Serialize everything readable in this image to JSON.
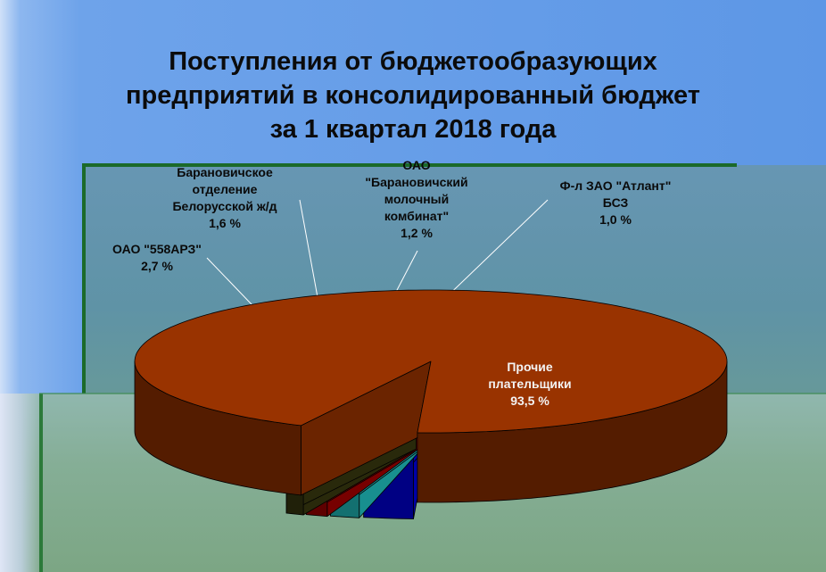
{
  "chart_data": {
    "type": "pie",
    "title_lines": [
      "Поступления от бюджетообразующих",
      "предприятий в консолидированный бюджет",
      "за 1 квартал 2018 года"
    ],
    "three_d": true,
    "exploded": true,
    "slices": [
      {
        "label_lines": [
          "Прочие",
          "плательщики"
        ],
        "value": 93.5,
        "value_label": "93,5 %",
        "color": "#993300"
      },
      {
        "label_lines": [
          "ОАО \"558АРЗ\""
        ],
        "value": 2.7,
        "value_label": "2,7 %",
        "color": "#0000ee"
      },
      {
        "label_lines": [
          "Барановичское",
          "отделение",
          "Белорусской ж/д"
        ],
        "value": 1.6,
        "value_label": "1,6 %",
        "color": "#22cccc"
      },
      {
        "label_lines": [
          "ОАО",
          "\"Барановичский",
          "молочный",
          "комбинат\""
        ],
        "value": 1.2,
        "value_label": "1,2 %",
        "color": "#aa0000"
      },
      {
        "label_lines": [
          "Ф-л ЗАО \"Атлант\"",
          "БСЗ"
        ],
        "value": 1.0,
        "value_label": "1,0 %",
        "color": "#3a3a10"
      }
    ]
  }
}
